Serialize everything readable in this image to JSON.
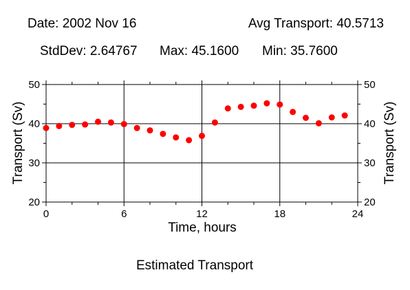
{
  "header": {
    "date": "Date: 2002 Nov 16",
    "avg": "Avg Transport: 40.5713",
    "stddev": "StdDev: 2.64767",
    "max": "Max: 45.1600",
    "min": "Min: 35.7600"
  },
  "chart_data": {
    "type": "scatter",
    "title": "Estimated Transport",
    "xlabel": "Time, hours",
    "ylabel": "Transport (Sv)",
    "y2label": "Transport (Sv)",
    "xlim": [
      0,
      24
    ],
    "ylim": [
      20,
      50
    ],
    "xticks": [
      0,
      6,
      12,
      18,
      24
    ],
    "yticks": [
      20,
      30,
      40,
      50
    ],
    "grid": true,
    "marker_color": "#ff0000",
    "x": [
      0,
      1,
      2,
      3,
      4,
      5,
      6,
      7,
      8,
      9,
      10,
      11,
      12,
      13,
      14,
      15,
      16,
      17,
      18,
      19,
      20,
      21,
      22,
      23
    ],
    "y": [
      38.9,
      39.4,
      39.7,
      39.8,
      40.5,
      40.3,
      39.9,
      38.9,
      38.3,
      37.4,
      36.5,
      35.8,
      36.9,
      40.3,
      43.9,
      44.3,
      44.6,
      45.2,
      44.9,
      43.0,
      41.5,
      40.1,
      41.6,
      42.1
    ]
  }
}
